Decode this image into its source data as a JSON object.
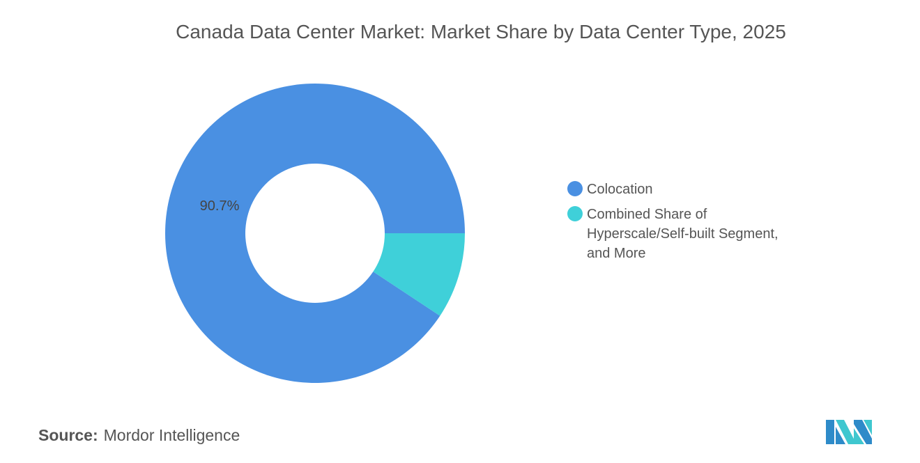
{
  "chart_data": {
    "type": "pie",
    "variant": "donut",
    "title": "Canada Data Center Market: Market Share by Data Center Type, 2025",
    "categories": [
      "Colocation",
      "Combined Share of Hyperscale/Self-built Segment, and More"
    ],
    "values": [
      90.7,
      9.3
    ],
    "unit": "%",
    "data_labels": [
      "90.7%",
      ""
    ],
    "colors": [
      "#4A90E2",
      "#3FD0D9"
    ],
    "legend_position": "right"
  },
  "source": {
    "label": "Source:",
    "text": "Mordor Intelligence"
  },
  "logo": {
    "colors": [
      "#2E8BC9",
      "#3FC7CF"
    ]
  }
}
